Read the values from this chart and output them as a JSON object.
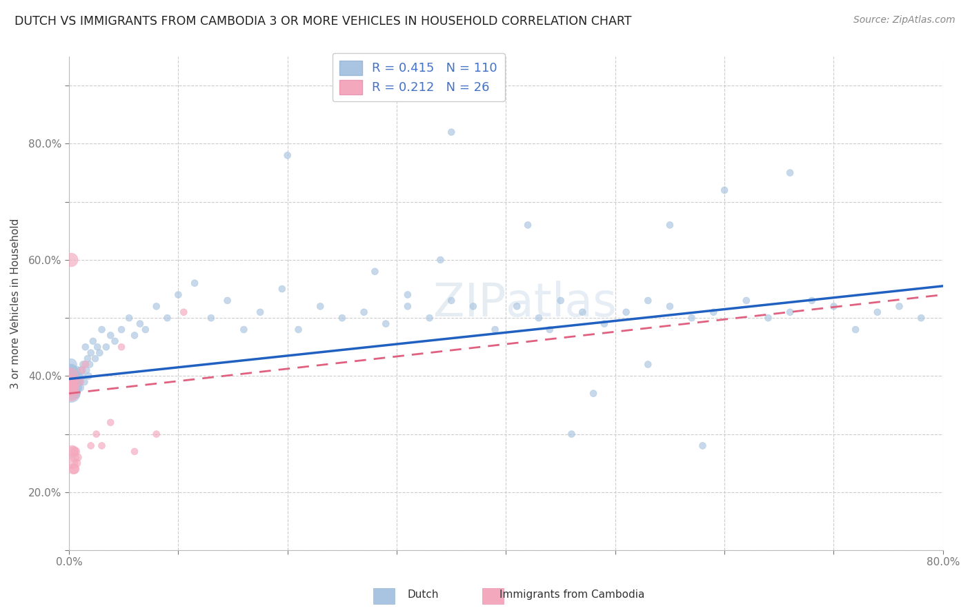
{
  "title": "DUTCH VS IMMIGRANTS FROM CAMBODIA 3 OR MORE VEHICLES IN HOUSEHOLD CORRELATION CHART",
  "source": "Source: ZipAtlas.com",
  "ylabel": "3 or more Vehicles in Household",
  "xlim": [
    0.0,
    0.8
  ],
  "ylim": [
    0.0,
    0.85
  ],
  "blue_R": 0.415,
  "blue_N": 110,
  "pink_R": 0.212,
  "pink_N": 26,
  "blue_color": "#a8c4e0",
  "pink_color": "#f4a8be",
  "blue_line_color": "#2060c0",
  "pink_line_color": "#e06080",
  "watermark": "ZIPatlas",
  "dutch_x": [
    0.001,
    0.001,
    0.001,
    0.002,
    0.002,
    0.002,
    0.002,
    0.002,
    0.002,
    0.002,
    0.003,
    0.003,
    0.003,
    0.003,
    0.003,
    0.003,
    0.004,
    0.004,
    0.004,
    0.004,
    0.005,
    0.005,
    0.005,
    0.006,
    0.006,
    0.006,
    0.007,
    0.007,
    0.007,
    0.008,
    0.008,
    0.009,
    0.009,
    0.01,
    0.01,
    0.011,
    0.012,
    0.013,
    0.014,
    0.015,
    0.016,
    0.017,
    0.018,
    0.019,
    0.02,
    0.022,
    0.024,
    0.026,
    0.028,
    0.03,
    0.034,
    0.038,
    0.042,
    0.048,
    0.055,
    0.06,
    0.065,
    0.07,
    0.08,
    0.09,
    0.1,
    0.115,
    0.13,
    0.145,
    0.16,
    0.175,
    0.195,
    0.21,
    0.23,
    0.25,
    0.27,
    0.29,
    0.31,
    0.33,
    0.35,
    0.37,
    0.39,
    0.41,
    0.43,
    0.45,
    0.47,
    0.49,
    0.51,
    0.53,
    0.55,
    0.57,
    0.59,
    0.62,
    0.64,
    0.66,
    0.68,
    0.7,
    0.72,
    0.74,
    0.76,
    0.78,
    0.35,
    0.42,
    0.55,
    0.66,
    0.34,
    0.28,
    0.48,
    0.6,
    0.2,
    0.31,
    0.46,
    0.53,
    0.58,
    0.44
  ],
  "dutch_y": [
    0.29,
    0.3,
    0.31,
    0.27,
    0.28,
    0.29,
    0.3,
    0.31,
    0.32,
    0.28,
    0.27,
    0.28,
    0.29,
    0.3,
    0.31,
    0.29,
    0.28,
    0.29,
    0.3,
    0.31,
    0.28,
    0.29,
    0.3,
    0.27,
    0.29,
    0.3,
    0.28,
    0.29,
    0.31,
    0.28,
    0.3,
    0.29,
    0.3,
    0.28,
    0.29,
    0.31,
    0.3,
    0.32,
    0.29,
    0.35,
    0.31,
    0.33,
    0.3,
    0.32,
    0.34,
    0.36,
    0.33,
    0.35,
    0.34,
    0.38,
    0.35,
    0.37,
    0.36,
    0.38,
    0.4,
    0.37,
    0.39,
    0.38,
    0.42,
    0.4,
    0.44,
    0.46,
    0.4,
    0.43,
    0.38,
    0.41,
    0.45,
    0.38,
    0.42,
    0.4,
    0.41,
    0.39,
    0.42,
    0.4,
    0.43,
    0.42,
    0.38,
    0.42,
    0.4,
    0.43,
    0.41,
    0.39,
    0.41,
    0.43,
    0.42,
    0.4,
    0.41,
    0.43,
    0.4,
    0.41,
    0.43,
    0.42,
    0.38,
    0.41,
    0.42,
    0.4,
    0.72,
    0.56,
    0.56,
    0.65,
    0.5,
    0.48,
    0.27,
    0.62,
    0.68,
    0.44,
    0.2,
    0.32,
    0.18,
    0.38
  ],
  "dutch_size": [
    220,
    180,
    150,
    350,
    280,
    230,
    200,
    170,
    140,
    120,
    160,
    140,
    120,
    110,
    100,
    90,
    130,
    110,
    100,
    90,
    120,
    100,
    90,
    100,
    90,
    80,
    90,
    80,
    70,
    80,
    70,
    70,
    60,
    70,
    60,
    60,
    60,
    55,
    55,
    50,
    50,
    50,
    50,
    50,
    50,
    50,
    50,
    50,
    50,
    50,
    50,
    50,
    50,
    50,
    50,
    50,
    50,
    50,
    50,
    50,
    50,
    50,
    50,
    50,
    50,
    50,
    50,
    50,
    50,
    50,
    50,
    50,
    50,
    50,
    50,
    50,
    50,
    50,
    50,
    50,
    50,
    50,
    50,
    50,
    50,
    50,
    50,
    50,
    50,
    50,
    50,
    50,
    50,
    50,
    50,
    50,
    50,
    50,
    50,
    50,
    50,
    50,
    50,
    50,
    50,
    50,
    50,
    50,
    50,
    50
  ],
  "camb_x": [
    0.001,
    0.001,
    0.002,
    0.002,
    0.002,
    0.003,
    0.003,
    0.003,
    0.004,
    0.004,
    0.005,
    0.005,
    0.006,
    0.007,
    0.008,
    0.01,
    0.012,
    0.015,
    0.02,
    0.025,
    0.03,
    0.038,
    0.048,
    0.06,
    0.08,
    0.105
  ],
  "camb_y": [
    0.28,
    0.3,
    0.27,
    0.29,
    0.5,
    0.28,
    0.17,
    0.15,
    0.14,
    0.17,
    0.14,
    0.16,
    0.17,
    0.15,
    0.16,
    0.29,
    0.31,
    0.32,
    0.18,
    0.2,
    0.18,
    0.22,
    0.35,
    0.17,
    0.2,
    0.41
  ],
  "camb_size": [
    320,
    280,
    250,
    230,
    200,
    180,
    160,
    140,
    120,
    110,
    100,
    90,
    80,
    70,
    65,
    60,
    55,
    55,
    50,
    50,
    50,
    50,
    50,
    50,
    50,
    50
  ],
  "blue_line_x0": 0.0,
  "blue_line_y0": 0.295,
  "blue_line_x1": 0.8,
  "blue_line_y1": 0.455,
  "pink_line_x0": 0.0,
  "pink_line_y0": 0.27,
  "pink_line_x1": 0.8,
  "pink_line_y1": 0.44
}
